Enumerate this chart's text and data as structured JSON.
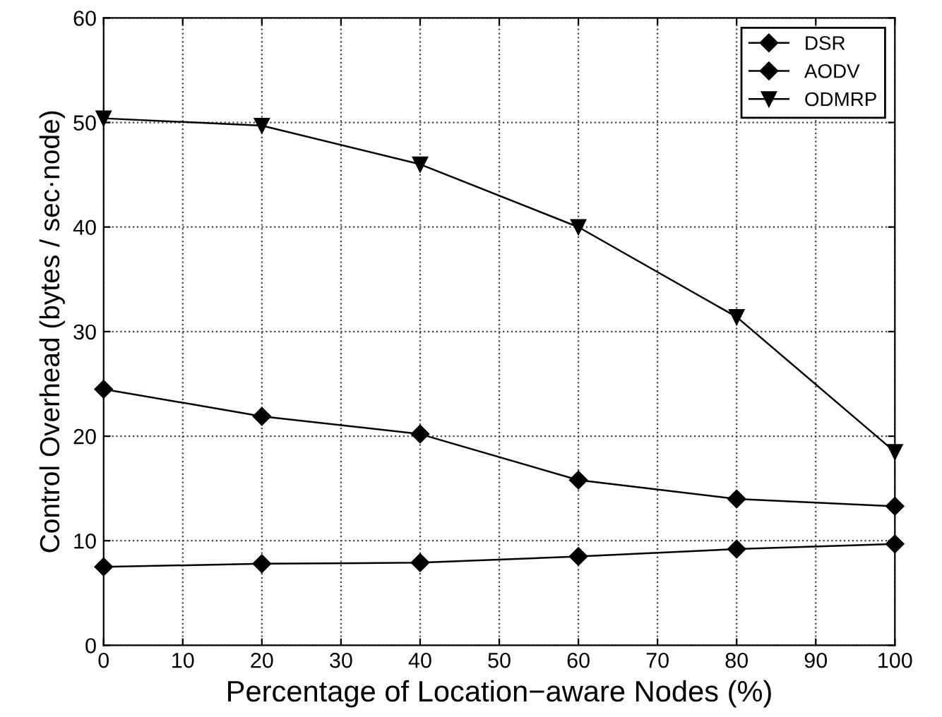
{
  "chart_data": {
    "type": "line",
    "xlabel": "Percentage of Location−aware Nodes (%)",
    "ylabel": "Control Overhead (bytes / sec·node)",
    "x": [
      0,
      20,
      40,
      60,
      80,
      100
    ],
    "series": [
      {
        "name": "DSR",
        "color": "#000000",
        "marker": "diamond",
        "values": [
          7.5,
          7.8,
          7.9,
          8.5,
          9.2,
          9.7
        ]
      },
      {
        "name": "AODV",
        "color": "#000000",
        "marker": "diamond",
        "values": [
          24.5,
          21.9,
          20.2,
          15.8,
          14.0,
          13.3
        ]
      },
      {
        "name": "ODMRP",
        "color": "#000000",
        "marker": "triangle",
        "values": [
          50.4,
          49.7,
          46.0,
          40.0,
          31.4,
          18.5
        ]
      }
    ],
    "xlim": [
      0,
      100
    ],
    "xticks": [
      0,
      10,
      20,
      30,
      40,
      50,
      60,
      70,
      80,
      90,
      100
    ],
    "ylim": [
      0,
      60
    ],
    "yticks": [
      0,
      10,
      20,
      30,
      40,
      50,
      60
    ],
    "grid": true,
    "legend": "top right",
    "line_style": "solid"
  }
}
